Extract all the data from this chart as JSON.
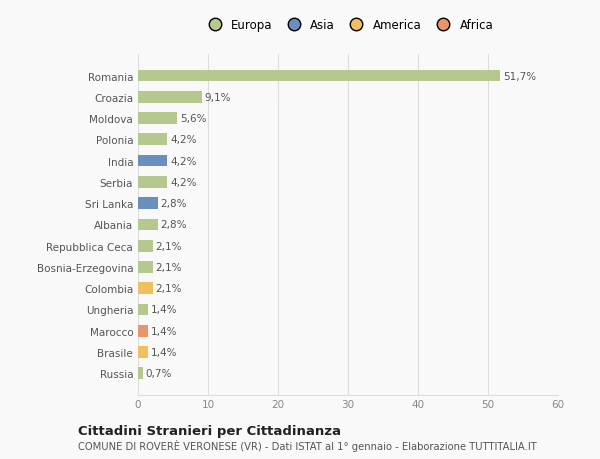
{
  "countries": [
    "Romania",
    "Croazia",
    "Moldova",
    "Polonia",
    "India",
    "Serbia",
    "Sri Lanka",
    "Albania",
    "Repubblica Ceca",
    "Bosnia-Erzegovina",
    "Colombia",
    "Ungheria",
    "Marocco",
    "Brasile",
    "Russia"
  ],
  "values": [
    51.7,
    9.1,
    5.6,
    4.2,
    4.2,
    4.2,
    2.8,
    2.8,
    2.1,
    2.1,
    2.1,
    1.4,
    1.4,
    1.4,
    0.7
  ],
  "labels": [
    "51,7%",
    "9,1%",
    "5,6%",
    "4,2%",
    "4,2%",
    "4,2%",
    "2,8%",
    "2,8%",
    "2,1%",
    "2,1%",
    "2,1%",
    "1,4%",
    "1,4%",
    "1,4%",
    "0,7%"
  ],
  "continent": [
    "Europa",
    "Europa",
    "Europa",
    "Europa",
    "Asia",
    "Europa",
    "Asia",
    "Europa",
    "Europa",
    "Europa",
    "America",
    "Europa",
    "Africa",
    "America",
    "Europa"
  ],
  "continent_colors": {
    "Europa": "#b5c98e",
    "Asia": "#6a8fbf",
    "America": "#f0c060",
    "Africa": "#e8956d"
  },
  "legend_entries": [
    "Europa",
    "Asia",
    "America",
    "Africa"
  ],
  "legend_colors": [
    "#b5c98e",
    "#6a8fbf",
    "#f0c060",
    "#e8956d"
  ],
  "xlim": [
    0,
    60
  ],
  "xticks": [
    0,
    10,
    20,
    30,
    40,
    50,
    60
  ],
  "title": "Cittadini Stranieri per Cittadinanza",
  "subtitle": "COMUNE DI ROVERÈ VERONESE (VR) - Dati ISTAT al 1° gennaio - Elaborazione TUTTITALIA.IT",
  "bg_color": "#f9f9f9",
  "grid_color": "#dddddd"
}
